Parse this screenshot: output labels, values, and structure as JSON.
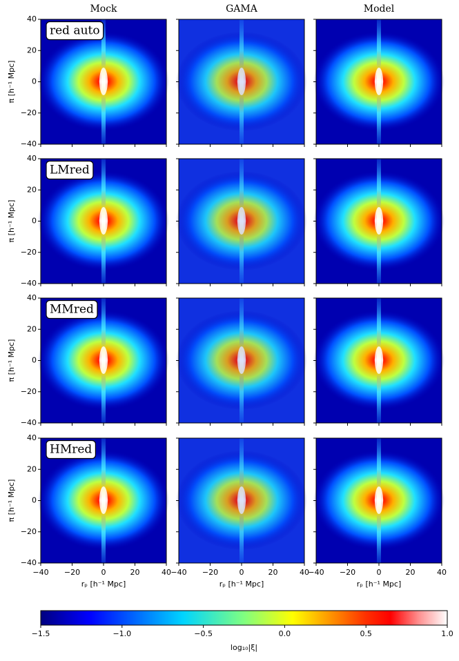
{
  "chart_data": {
    "type": "heatmap-grid",
    "columns": [
      "Mock",
      "GAMA",
      "Model"
    ],
    "rows": [
      "red auto",
      "LMred",
      "MMred",
      "HMred"
    ],
    "xlabel": "rₚ [h⁻¹ Mpc]",
    "ylabel": "π [h⁻¹ Mpc]",
    "xlim": [
      -40,
      40
    ],
    "ylim": [
      -40,
      40
    ],
    "xticks": [
      {
        "value": -40,
        "label": "−40"
      },
      {
        "value": -20,
        "label": "−20"
      },
      0,
      20,
      40
    ],
    "yticks": [
      {
        "value": -40,
        "label": "−40"
      },
      {
        "value": -20,
        "label": "−20"
      },
      0,
      20,
      40
    ],
    "colorbar": {
      "label": "log₁₀|ξ|",
      "lim": [
        -1.5,
        1.0
      ],
      "ticks": [
        {
          "value": -1.5,
          "label": "−1.5"
        },
        {
          "value": -1.0,
          "label": "−1.0"
        },
        {
          "value": -0.5,
          "label": "−0.5"
        },
        {
          "value": 0.0,
          "label": "0.0"
        },
        0.5,
        {
          "value": 1.0,
          "label": "1.0"
        }
      ]
    }
  }
}
